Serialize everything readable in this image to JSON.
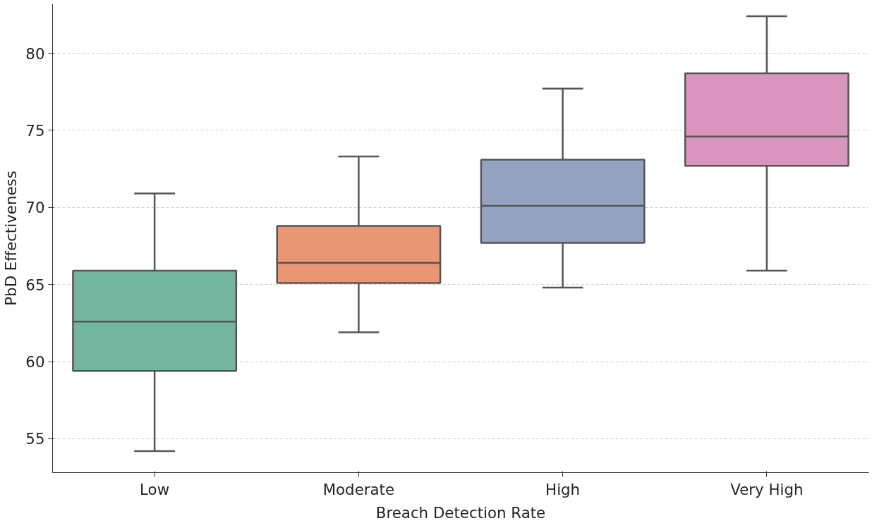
{
  "chart_data": {
    "type": "box",
    "xlabel": "Breach Detection Rate",
    "ylabel": "PbD Effectiveness",
    "categories": [
      "Low",
      "Moderate",
      "High",
      "Very High"
    ],
    "colors": [
      "#72b6a0",
      "#e99675",
      "#95a3c3",
      "#da95be"
    ],
    "boxes": [
      {
        "low": 54.2,
        "q1": 59.4,
        "median": 62.6,
        "q3": 65.9,
        "high": 70.9
      },
      {
        "low": 61.9,
        "q1": 65.1,
        "median": 66.4,
        "q3": 68.8,
        "high": 73.3
      },
      {
        "low": 64.8,
        "q1": 67.7,
        "median": 70.1,
        "q3": 73.1,
        "high": 77.7
      },
      {
        "low": 65.9,
        "q1": 72.7,
        "median": 74.6,
        "q3": 78.7,
        "high": 82.4
      }
    ],
    "ylim": [
      52.8,
      83.2
    ],
    "yticks": [
      55,
      60,
      65,
      70,
      75,
      80
    ],
    "grid": "y"
  }
}
